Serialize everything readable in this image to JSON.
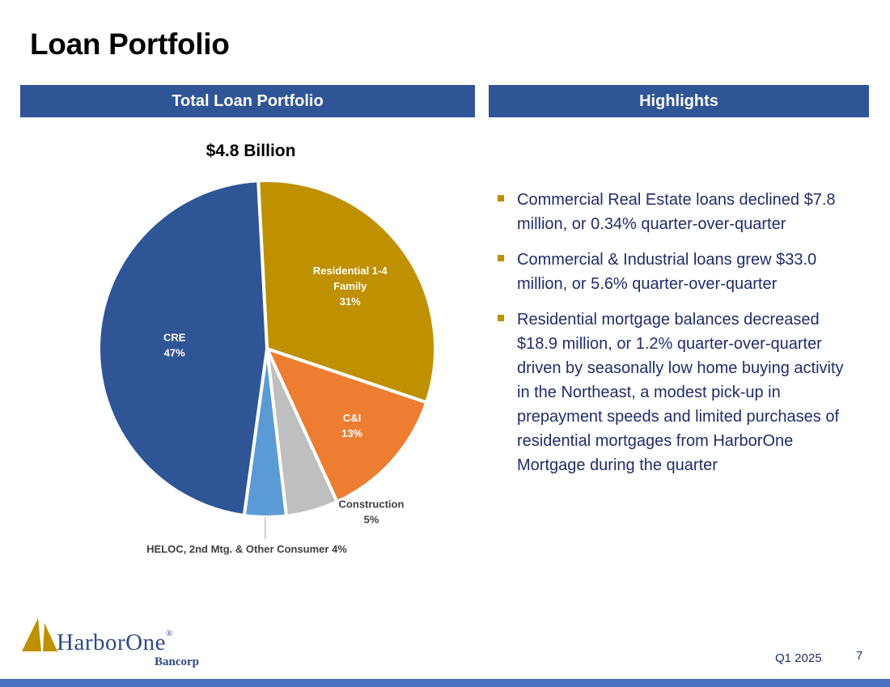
{
  "title": "Loan Portfolio",
  "headers": {
    "left": "Total Loan Portfolio",
    "right": "Highlights"
  },
  "chart_data": {
    "type": "pie",
    "title": "$4.8 Billion",
    "total": "$4.8 Billion",
    "slices": [
      {
        "lines": [
          "Residential 1-4",
          "Family",
          "31%"
        ],
        "value": 31,
        "color": "#bf9000",
        "text_color": "#ffffff"
      },
      {
        "lines": [
          "C&I",
          "13%"
        ],
        "value": 13,
        "color": "#ed7d31",
        "text_color": "#ffffff"
      },
      {
        "lines": [
          "Construction",
          "5%"
        ],
        "value": 5,
        "color": "#bfbfbf",
        "text_color": "#404040"
      },
      {
        "lines": [
          "HELOC, 2nd Mtg. & Other Consumer 4%"
        ],
        "value": 4,
        "color": "#5b9bd5",
        "text_color": "#404040"
      },
      {
        "lines": [
          "CRE",
          "47%"
        ],
        "value": 47,
        "color": "#2f5597",
        "text_color": "#ffffff"
      }
    ]
  },
  "highlights": [
    "Commercial Real Estate loans declined $7.8 million, or 0.34% quarter-over-quarter",
    "Commercial & Industrial loans grew $33.0 million, or 5.6% quarter-over-quarter",
    "Residential mortgage balances decreased $18.9 million, or 1.2% quarter-over-quarter driven by seasonally low home buying activity in the Northeast, a modest pick-up in prepayment speeds and limited purchases of residential mortgages from HarborOne Mortgage during the quarter"
  ],
  "logo": {
    "name": "HarborOne",
    "registered": "®",
    "sub": "Bancorp"
  },
  "footer": {
    "date": "Q1 2025",
    "page": "7"
  },
  "colors": {
    "accent": "#2f5597",
    "gold": "#bf9000",
    "text": "#1f2d6b",
    "bar": "#4a72c4"
  }
}
